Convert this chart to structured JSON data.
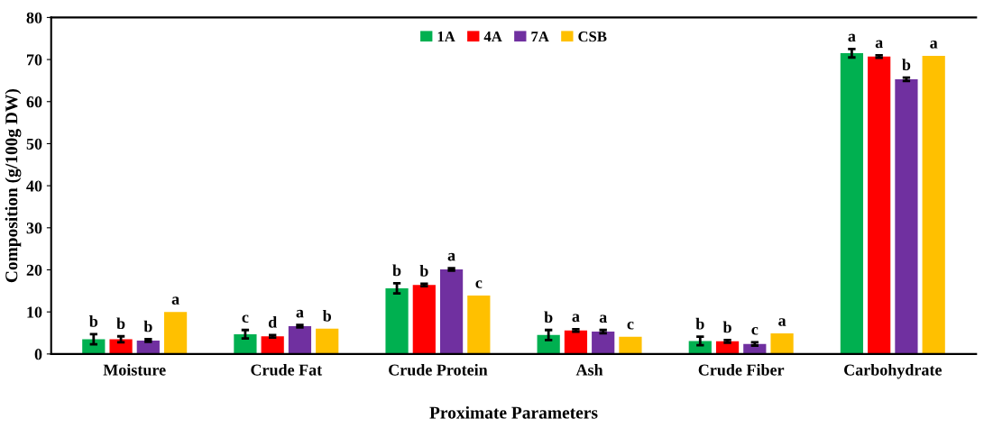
{
  "chart_data": {
    "type": "bar",
    "xlabel": "Proximate Parameters",
    "ylabel": "Composition (g/100g DW)",
    "categories": [
      "Moisture",
      "Crude Fat",
      "Crude Protein",
      "Ash",
      "Crude Fiber",
      "Carbohydrate"
    ],
    "series": [
      {
        "name": "1A",
        "color": "#00b050",
        "values": [
          3.5,
          4.7,
          15.6,
          4.5,
          3.1,
          71.5
        ],
        "errors": [
          1.2,
          1.0,
          1.2,
          1.2,
          1.0,
          1.0
        ],
        "value_labels": [
          "b",
          "c",
          "b",
          "b",
          "b",
          "a"
        ]
      },
      {
        "name": "4A",
        "color": "#ff0000",
        "values": [
          3.5,
          4.2,
          16.4,
          5.6,
          3.0,
          70.7
        ],
        "errors": [
          0.7,
          0.3,
          0.3,
          0.3,
          0.3,
          0.3
        ],
        "value_labels": [
          "b",
          "d",
          "b",
          "a",
          "b",
          "a"
        ]
      },
      {
        "name": "7A",
        "color": "#7030a0",
        "values": [
          3.2,
          6.6,
          20.1,
          5.3,
          2.4,
          65.3
        ],
        "errors": [
          0.3,
          0.3,
          0.3,
          0.4,
          0.4,
          0.4
        ],
        "value_labels": [
          "b",
          "a",
          "a",
          "a",
          "c",
          "b"
        ]
      },
      {
        "name": "CSB",
        "color": "#ffc000",
        "values": [
          10.0,
          6.0,
          13.9,
          4.1,
          4.9,
          70.9
        ],
        "value_labels": [
          "a",
          "b",
          "c",
          "c",
          "a",
          "a"
        ]
      }
    ],
    "ylim": [
      0,
      80
    ],
    "yticks": [
      0,
      10,
      20,
      30,
      40,
      50,
      60,
      70,
      80
    ],
    "grid": false,
    "legend": "top"
  }
}
